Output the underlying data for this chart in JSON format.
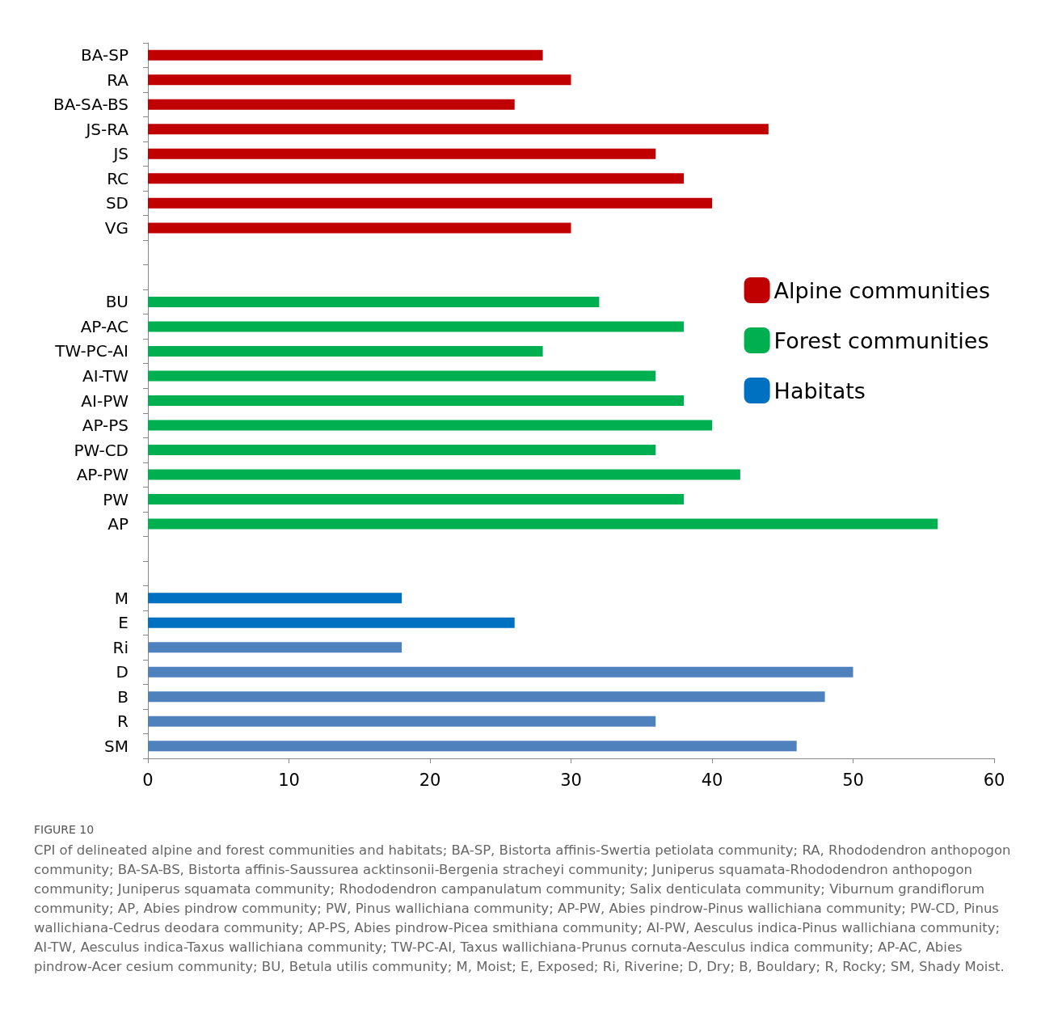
{
  "chart_data": {
    "type": "bar",
    "orientation": "horizontal",
    "categories": [
      "BA-SP",
      "RA",
      "BA-SA-BS",
      "JS-RA",
      "JS",
      "RC",
      "SD",
      "VG",
      null,
      null,
      "BU",
      "AP-AC",
      "TW-PC-AI",
      "AI-TW",
      "AI-PW",
      "AP-PS",
      "PW-CD",
      "AP-PW",
      "PW",
      "AP",
      null,
      null,
      "M",
      "E",
      "Ri",
      "D",
      "B",
      "R",
      "SM"
    ],
    "series": [
      {
        "name": "Alpine communities",
        "color": "#c00000",
        "values": [
          28,
          30,
          26,
          44,
          36,
          38,
          40,
          30,
          null,
          null,
          null,
          null,
          null,
          null,
          null,
          null,
          null,
          null,
          null,
          null,
          null,
          null,
          null,
          null,
          null,
          null,
          null,
          null,
          null
        ]
      },
      {
        "name": "Forest communities",
        "color": "#00b050",
        "values": [
          null,
          null,
          null,
          null,
          null,
          null,
          null,
          null,
          null,
          null,
          32,
          38,
          28,
          36,
          38,
          40,
          36,
          42,
          38,
          56,
          null,
          null,
          null,
          null,
          null,
          null,
          null,
          null,
          null
        ]
      },
      {
        "name": "Habitats",
        "color": "#0070c0",
        "colors": [
          null,
          null,
          null,
          null,
          null,
          null,
          null,
          null,
          null,
          null,
          null,
          null,
          null,
          null,
          null,
          null,
          null,
          null,
          null,
          null,
          null,
          null,
          "#0070c0",
          "#0070c0",
          "#4f81bd",
          "#4f81bd",
          "#4f81bd",
          "#4f81bd",
          "#4f81bd"
        ],
        "values": [
          null,
          null,
          null,
          null,
          null,
          null,
          null,
          null,
          null,
          null,
          null,
          null,
          null,
          null,
          null,
          null,
          null,
          null,
          null,
          null,
          null,
          null,
          18,
          26,
          18,
          50,
          48,
          36,
          46
        ]
      }
    ],
    "xlim": [
      0,
      60
    ],
    "xticks": [
      0,
      10,
      20,
      30,
      40,
      50,
      60
    ],
    "grid": false,
    "legend": "right",
    "annotations": [
      "FIGURE 10",
      "CPI of delineated alpine and forest communities and habitats; BA-SP, Bistorta affinis-Swertia petiolata community; RA, Rhododendron anthopogon community; BA-SA-BS, Bistorta affinis-Saussurea acktinsonii-Bergenia stracheyi community; Juniperus squamata-Rhododendron anthopogon community; Juniperus squamata community; Rhododendron campanulatum community; Salix denticulata community; Viburnum grandiflorum community; AP, Abies pindrow community; PW, Pinus wallichiana community; AP-PW, Abies pindrow-Pinus wallichiana community; PW-CD, Pinus wallichiana-Cedrus deodara community; AP-PS, Abies pindrow-Picea smithiana community; AI-PW, Aesculus indica-Pinus wallichiana community; AI-TW, Aesculus indica-Taxus wallichiana community; TW-PC-AI, Taxus wallichiana-Prunus cornuta-Aesculus indica community; AP-AC, Abies pindrow-Acer cesium community; BU, Betula utilis community; M, Moist; E, Exposed; Ri, Riverine; D, Dry; B, Bouldary; R, Rocky; SM, Shady Moist."
    ]
  }
}
